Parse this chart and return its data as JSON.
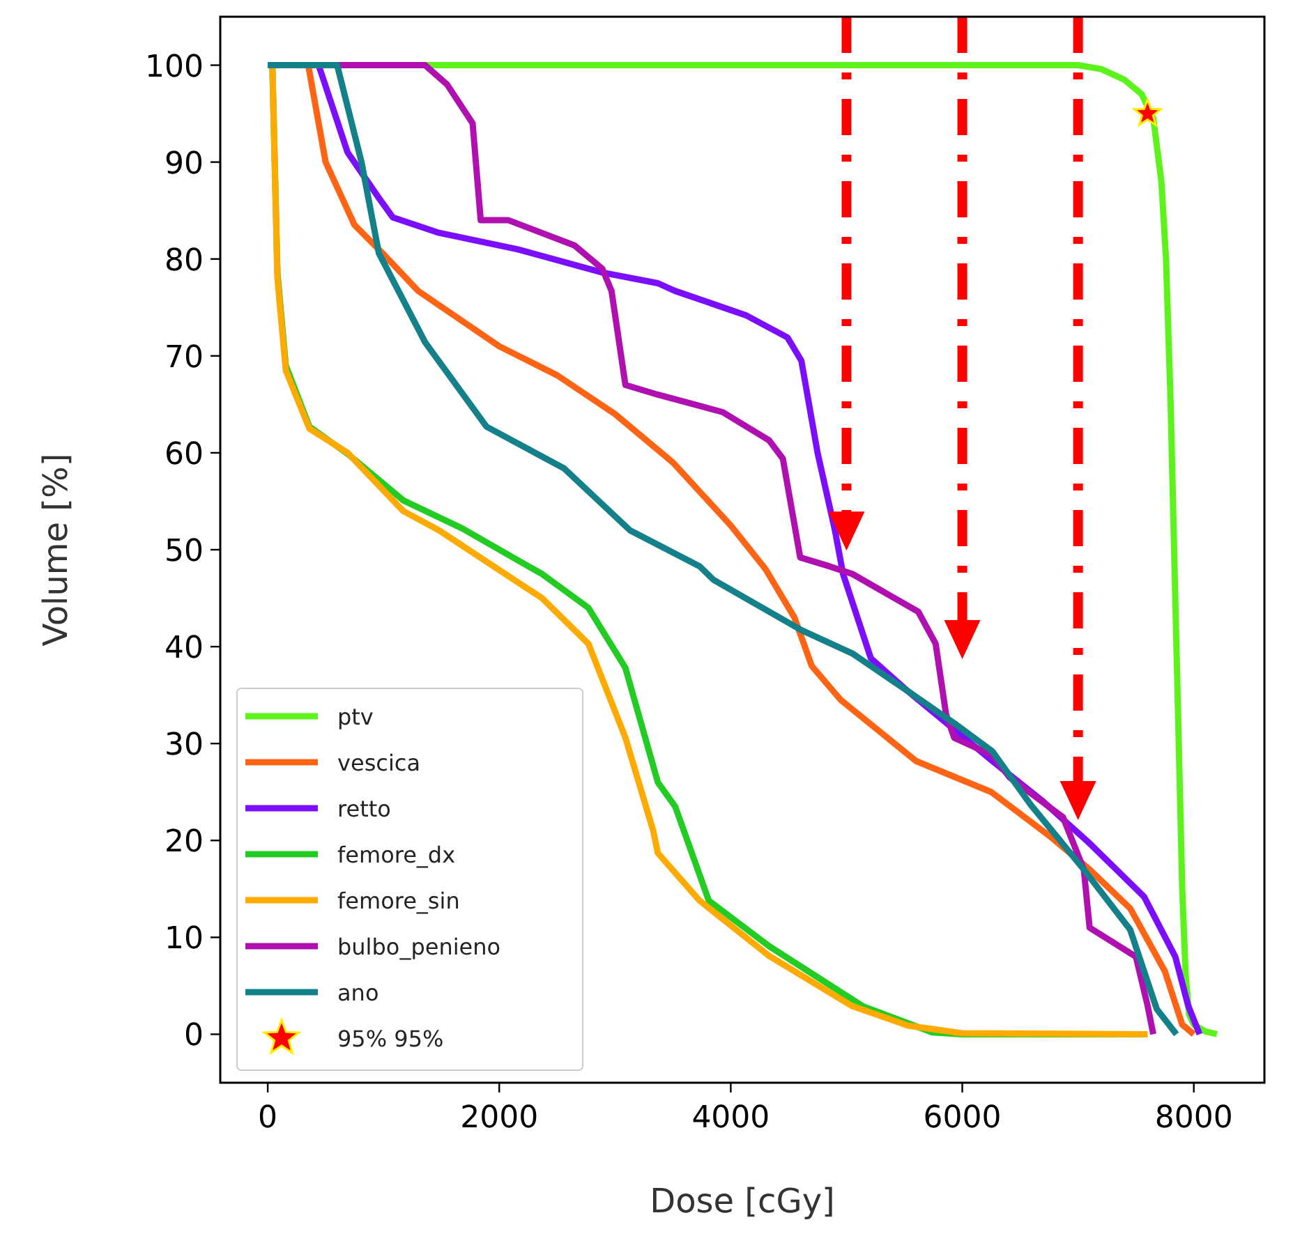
{
  "chart_data": {
    "type": "line",
    "xlabel": "Dose [cGy]",
    "ylabel": "Volume [%]",
    "xlim": [
      -410,
      8610
    ],
    "ylim": [
      -5,
      105
    ],
    "xticks": [
      0,
      2000,
      4000,
      6000,
      8000
    ],
    "yticks": [
      0,
      10,
      20,
      30,
      40,
      50,
      60,
      70,
      80,
      90,
      100
    ],
    "grid": false,
    "legend": "bottom left",
    "marker": "none",
    "line_style": "solid",
    "series": [
      {
        "name": "ptv",
        "color": "#5cf21c",
        "x": [
          0,
          7000,
          7200,
          7400,
          7550,
          7650,
          7720,
          7760,
          7800,
          7840,
          7870,
          7900,
          7930,
          7960,
          8000,
          8100,
          8200
        ],
        "values": [
          100,
          100,
          99.6,
          98.5,
          97,
          94.5,
          88,
          80,
          65,
          45,
          30,
          15,
          6,
          2,
          1,
          0.3,
          0
        ]
      },
      {
        "name": "vescica",
        "color": "#ff6415",
        "x": [
          0,
          350,
          500,
          750,
          1000,
          1300,
          2000,
          2500,
          3000,
          3500,
          4000,
          4300,
          4550,
          4700,
          4950,
          5600,
          6250,
          6750,
          7100,
          7450,
          7750,
          7900,
          8000
        ],
        "values": [
          100,
          100,
          90,
          83.5,
          80.5,
          76.7,
          71,
          68,
          64,
          59,
          52.5,
          48,
          43,
          38,
          34.5,
          28.2,
          25,
          20.5,
          17,
          13,
          6.5,
          1,
          0
        ]
      },
      {
        "name": "retto",
        "color": "#7b0eff",
        "x": [
          0,
          440,
          690,
          960,
          1080,
          1480,
          2160,
          2890,
          3370,
          3520,
          4130,
          4490,
          4610,
          4750,
          4900,
          4970,
          5210,
          5530,
          6260,
          6700,
          7100,
          7570,
          7840,
          7950,
          8050
        ],
        "values": [
          100,
          100,
          91,
          86.3,
          84.3,
          82.7,
          81,
          78.6,
          77.5,
          76.7,
          74.2,
          71.9,
          69.5,
          60,
          52,
          47.5,
          38.8,
          35.4,
          28.2,
          24,
          19.7,
          14.2,
          8,
          3,
          0
        ]
      },
      {
        "name": "femore_dx",
        "color": "#22cc22",
        "x": [
          0,
          40,
          84,
          156,
          360,
          690,
          1170,
          1680,
          2250,
          2370,
          2770,
          3090,
          3370,
          3520,
          3810,
          4330,
          5140,
          5740,
          6000,
          7600
        ],
        "values": [
          100,
          100,
          78.6,
          69,
          62.7,
          59.9,
          55.1,
          52.2,
          48.3,
          47.5,
          44,
          37.8,
          26,
          23.5,
          13.8,
          9.1,
          2.9,
          0.2,
          0,
          0
        ]
      },
      {
        "name": "femore_sin",
        "color": "#ffaa00",
        "x": [
          0,
          40,
          84,
          156,
          360,
          690,
          1170,
          1480,
          2370,
          2770,
          3090,
          3330,
          3370,
          3730,
          4330,
          5050,
          5530,
          6000,
          7600
        ],
        "values": [
          100,
          100,
          78,
          68.5,
          62.5,
          60,
          54,
          52,
          45,
          40.3,
          30.6,
          21,
          18.7,
          13.8,
          8.1,
          2.9,
          0.9,
          0.1,
          0
        ]
      },
      {
        "name": "bulbo_penieno",
        "color": "#b010b0",
        "x": [
          0,
          1360,
          1550,
          1770,
          1840,
          2080,
          2650,
          2890,
          2970,
          3090,
          3370,
          3930,
          4330,
          4450,
          4600,
          4850,
          5050,
          5620,
          5770,
          5860,
          5930,
          6260,
          6410,
          6870,
          7050,
          7100,
          7500,
          7600,
          7650
        ],
        "values": [
          100,
          100,
          98,
          94,
          84,
          84,
          81.4,
          79,
          76.7,
          67,
          66,
          64.2,
          61.3,
          59.4,
          49.2,
          48.3,
          47.5,
          43.6,
          40.3,
          33,
          30.6,
          28.8,
          26.5,
          22.4,
          17,
          11,
          8,
          3,
          0
        ]
      },
      {
        "name": "ano",
        "color": "#13808a",
        "x": [
          0,
          600,
          810,
          960,
          1360,
          1890,
          2560,
          3130,
          3730,
          3850,
          4610,
          5050,
          5530,
          5930,
          6260,
          6590,
          7050,
          7450,
          7680,
          7850
        ],
        "values": [
          100,
          100,
          90,
          80.6,
          71.4,
          62.7,
          58.4,
          52,
          48.3,
          46.9,
          41.7,
          39.3,
          35.4,
          32.1,
          29.2,
          23.7,
          17,
          10.8,
          2.6,
          0
        ]
      },
      {
        "name": "95% 95%",
        "type": "scatter",
        "marker": "star",
        "color": "#ff0000",
        "x": [
          7600
        ],
        "values": [
          95
        ]
      },
      {
        "type": "line",
        "color": "#ff0000",
        "line_style": "dashed",
        "marker": "triangle",
        "x": [
          5000,
          5000
        ],
        "values": [
          105,
          52.5
        ]
      },
      {
        "type": "line",
        "color": "#ff0000",
        "line_style": "dashed",
        "marker": "triangle",
        "x": [
          6000,
          6000
        ],
        "values": [
          105,
          41.3
        ]
      },
      {
        "type": "line",
        "color": "#ff0000",
        "line_style": "dashed",
        "marker": "triangle",
        "x": [
          7000,
          7000
        ],
        "values": [
          105,
          24.7
        ]
      }
    ]
  }
}
